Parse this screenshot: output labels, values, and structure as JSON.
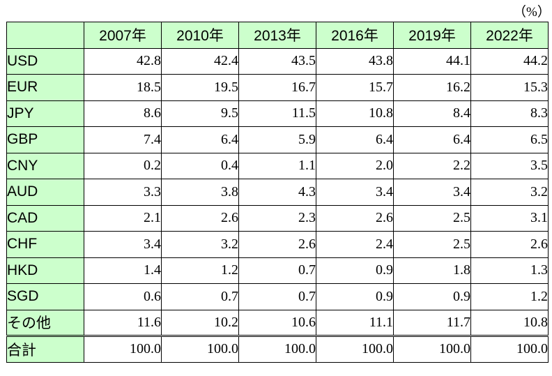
{
  "unit_label": "（%）",
  "chart_data": {
    "type": "table",
    "columns": [
      "2007年",
      "2010年",
      "2013年",
      "2016年",
      "2019年",
      "2022年"
    ],
    "rows": [
      {
        "label": "USD",
        "values": [
          "42.8",
          "42.4",
          "43.5",
          "43.8",
          "44.1",
          "44.2"
        ]
      },
      {
        "label": "EUR",
        "values": [
          "18.5",
          "19.5",
          "16.7",
          "15.7",
          "16.2",
          "15.3"
        ]
      },
      {
        "label": "JPY",
        "values": [
          "8.6",
          "9.5",
          "11.5",
          "10.8",
          "8.4",
          "8.3"
        ]
      },
      {
        "label": "GBP",
        "values": [
          "7.4",
          "6.4",
          "5.9",
          "6.4",
          "6.4",
          "6.5"
        ]
      },
      {
        "label": "CNY",
        "values": [
          "0.2",
          "0.4",
          "1.1",
          "2.0",
          "2.2",
          "3.5"
        ]
      },
      {
        "label": "AUD",
        "values": [
          "3.3",
          "3.8",
          "4.3",
          "3.4",
          "3.4",
          "3.2"
        ]
      },
      {
        "label": "CAD",
        "values": [
          "2.1",
          "2.6",
          "2.3",
          "2.6",
          "2.5",
          "3.1"
        ]
      },
      {
        "label": "CHF",
        "values": [
          "3.4",
          "3.2",
          "2.6",
          "2.4",
          "2.5",
          "2.6"
        ]
      },
      {
        "label": "HKD",
        "values": [
          "1.4",
          "1.2",
          "0.7",
          "0.9",
          "1.8",
          "1.3"
        ]
      },
      {
        "label": "SGD",
        "values": [
          "0.6",
          "0.7",
          "0.7",
          "0.9",
          "0.9",
          "1.2"
        ]
      },
      {
        "label": "その他",
        "values": [
          "11.6",
          "10.2",
          "10.6",
          "11.1",
          "11.7",
          "10.8"
        ]
      }
    ],
    "total": {
      "label": "合計",
      "values": [
        "100.0",
        "100.0",
        "100.0",
        "100.0",
        "100.0",
        "100.0"
      ]
    }
  },
  "colors": {
    "header_fill": "#ccffcc",
    "border": "#000000",
    "background": "#ffffff"
  }
}
